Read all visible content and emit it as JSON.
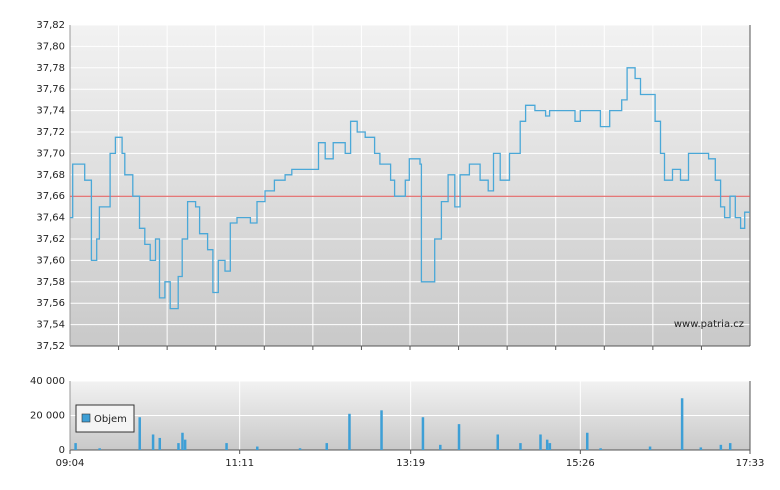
{
  "chart_data": [
    {
      "type": "line",
      "color": "#4aa8d8",
      "xlim": [
        "09:04",
        "17:33"
      ],
      "ylim": [
        37.52,
        37.82
      ],
      "yticks": [
        {
          "value": 37.52,
          "label": "37,52"
        },
        {
          "value": 37.54,
          "label": "37,54"
        },
        {
          "value": 37.56,
          "label": "37,56"
        },
        {
          "value": 37.58,
          "label": "37,58"
        },
        {
          "value": 37.6,
          "label": "37,60"
        },
        {
          "value": 37.62,
          "label": "37,62"
        },
        {
          "value": 37.64,
          "label": "37,64"
        },
        {
          "value": 37.66,
          "label": "37,66"
        },
        {
          "value": 37.68,
          "label": "37,68"
        },
        {
          "value": 37.7,
          "label": "37,70"
        },
        {
          "value": 37.72,
          "label": "37,72"
        },
        {
          "value": 37.74,
          "label": "37,74"
        },
        {
          "value": 37.76,
          "label": "37,76"
        },
        {
          "value": 37.78,
          "label": "37,78"
        },
        {
          "value": 37.8,
          "label": "37,80"
        },
        {
          "value": 37.82,
          "label": "37,82"
        }
      ],
      "reference_line": {
        "value": 37.66,
        "color": "#e05050"
      },
      "watermark": "www.patria.cz",
      "x": [
        "09:04",
        "09:06",
        "09:15",
        "09:20",
        "09:24",
        "09:26",
        "09:32",
        "09:34",
        "09:38",
        "09:43",
        "09:45",
        "09:51",
        "09:56",
        "10:00",
        "10:04",
        "10:08",
        "10:11",
        "10:15",
        "10:19",
        "10:25",
        "10:28",
        "10:32",
        "10:38",
        "10:41",
        "10:47",
        "10:51",
        "10:55",
        "11:00",
        "11:04",
        "11:09",
        "11:19",
        "11:24",
        "11:30",
        "11:37",
        "11:45",
        "11:50",
        "12:10",
        "12:15",
        "12:21",
        "12:30",
        "12:34",
        "12:39",
        "12:45",
        "12:52",
        "12:56",
        "13:04",
        "13:07",
        "13:15",
        "13:18",
        "13:26",
        "13:27",
        "13:37",
        "13:42",
        "13:47",
        "13:52",
        "13:56",
        "14:03",
        "14:11",
        "14:17",
        "14:21",
        "14:26",
        "14:33",
        "14:41",
        "14:45",
        "14:52",
        "15:00",
        "15:03",
        "15:18",
        "15:22",
        "15:26",
        "15:41",
        "15:48",
        "15:57",
        "16:01",
        "16:07",
        "16:11",
        "16:18",
        "16:22",
        "16:26",
        "16:29",
        "16:35",
        "16:41",
        "16:47",
        "17:02",
        "17:07",
        "17:11",
        "17:14",
        "17:18",
        "17:22",
        "17:26",
        "17:29",
        "17:33"
      ],
      "values": [
        37.64,
        37.69,
        37.675,
        37.6,
        37.62,
        37.65,
        37.65,
        37.7,
        37.715,
        37.7,
        37.68,
        37.66,
        37.63,
        37.615,
        37.6,
        37.62,
        37.565,
        37.58,
        37.555,
        37.585,
        37.62,
        37.655,
        37.65,
        37.625,
        37.61,
        37.57,
        37.6,
        37.59,
        37.635,
        37.64,
        37.635,
        37.655,
        37.665,
        37.675,
        37.68,
        37.685,
        37.71,
        37.695,
        37.71,
        37.7,
        37.73,
        37.72,
        37.715,
        37.7,
        37.69,
        37.675,
        37.66,
        37.675,
        37.695,
        37.69,
        37.58,
        37.62,
        37.655,
        37.68,
        37.65,
        37.68,
        37.69,
        37.675,
        37.665,
        37.7,
        37.675,
        37.7,
        37.73,
        37.745,
        37.74,
        37.735,
        37.74,
        37.74,
        37.73,
        37.74,
        37.725,
        37.74,
        37.75,
        37.78,
        37.77,
        37.755,
        37.755,
        37.73,
        37.7,
        37.675,
        37.685,
        37.675,
        37.7,
        37.695,
        37.675,
        37.65,
        37.64,
        37.66,
        37.64,
        37.63,
        37.645,
        37.645
      ]
    },
    {
      "type": "bar",
      "xlim": [
        "09:04",
        "17:33"
      ],
      "xticks": [
        "09:04",
        "11:11",
        "13:19",
        "15:26",
        "17:33"
      ],
      "ylim": [
        0,
        40000
      ],
      "yticks": [
        0,
        {
          "value": 20000,
          "label": "20 000"
        },
        {
          "value": 40000,
          "label": "40 000"
        }
      ],
      "x": [
        "09:08",
        "09:26",
        "09:56",
        "10:06",
        "10:11",
        "10:25",
        "10:28",
        "10:30",
        "11:01",
        "11:24",
        "11:56",
        "12:16",
        "12:33",
        "12:57",
        "13:28",
        "13:41",
        "13:55",
        "14:24",
        "14:41",
        "14:56",
        "15:01",
        "15:03",
        "15:31",
        "15:41",
        "16:18",
        "16:42",
        "16:56",
        "17:11",
        "17:18"
      ],
      "series": [
        {
          "name": "Objem",
          "color": "#3d9fd6",
          "values": [
            4000,
            1000,
            19000,
            9000,
            7000,
            4000,
            10000,
            6000,
            4000,
            2000,
            1000,
            4000,
            21000,
            23000,
            19000,
            3000,
            15000,
            9000,
            4000,
            9000,
            6000,
            4000,
            10000,
            1000,
            2000,
            30000,
            1500,
            3000,
            4000
          ]
        }
      ]
    }
  ]
}
